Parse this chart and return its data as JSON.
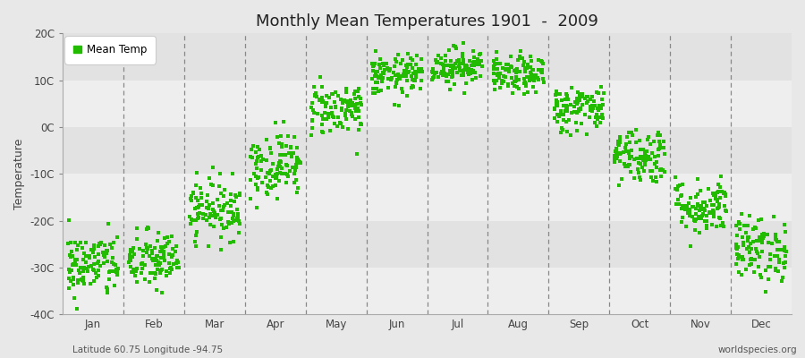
{
  "title": "Monthly Mean Temperatures 1901  -  2009",
  "ylabel": "Temperature",
  "xlabel_bottom_left": "Latitude 60.75 Longitude -94.75",
  "xlabel_bottom_right": "worldspecies.org",
  "legend_label": "Mean Temp",
  "dot_color": "#22bb00",
  "background_color": "#e8e8e8",
  "plot_bg_color_light": "#eeeeee",
  "plot_bg_color_dark": "#e2e2e2",
  "ylim": [
    -40,
    20
  ],
  "yticks": [
    -40,
    -30,
    -20,
    -10,
    0,
    10,
    20
  ],
  "ytick_labels": [
    "-40C",
    "-30C",
    "-20C",
    "-10C",
    "0C",
    "10C",
    "20C"
  ],
  "months": [
    "Jan",
    "Feb",
    "Mar",
    "Apr",
    "May",
    "Jun",
    "Jul",
    "Aug",
    "Sep",
    "Oct",
    "Nov",
    "Dec"
  ],
  "month_means": [
    -29.5,
    -28.5,
    -17.5,
    -8.0,
    4.0,
    11.0,
    13.0,
    11.0,
    4.0,
    -6.0,
    -17.0,
    -26.0
  ],
  "month_stds": [
    3.5,
    3.2,
    3.2,
    3.5,
    2.8,
    2.2,
    2.0,
    2.0,
    2.5,
    3.0,
    3.0,
    3.5
  ],
  "n_years": 109,
  "seed": 42,
  "dot_size": 9,
  "dot_marker": "s"
}
